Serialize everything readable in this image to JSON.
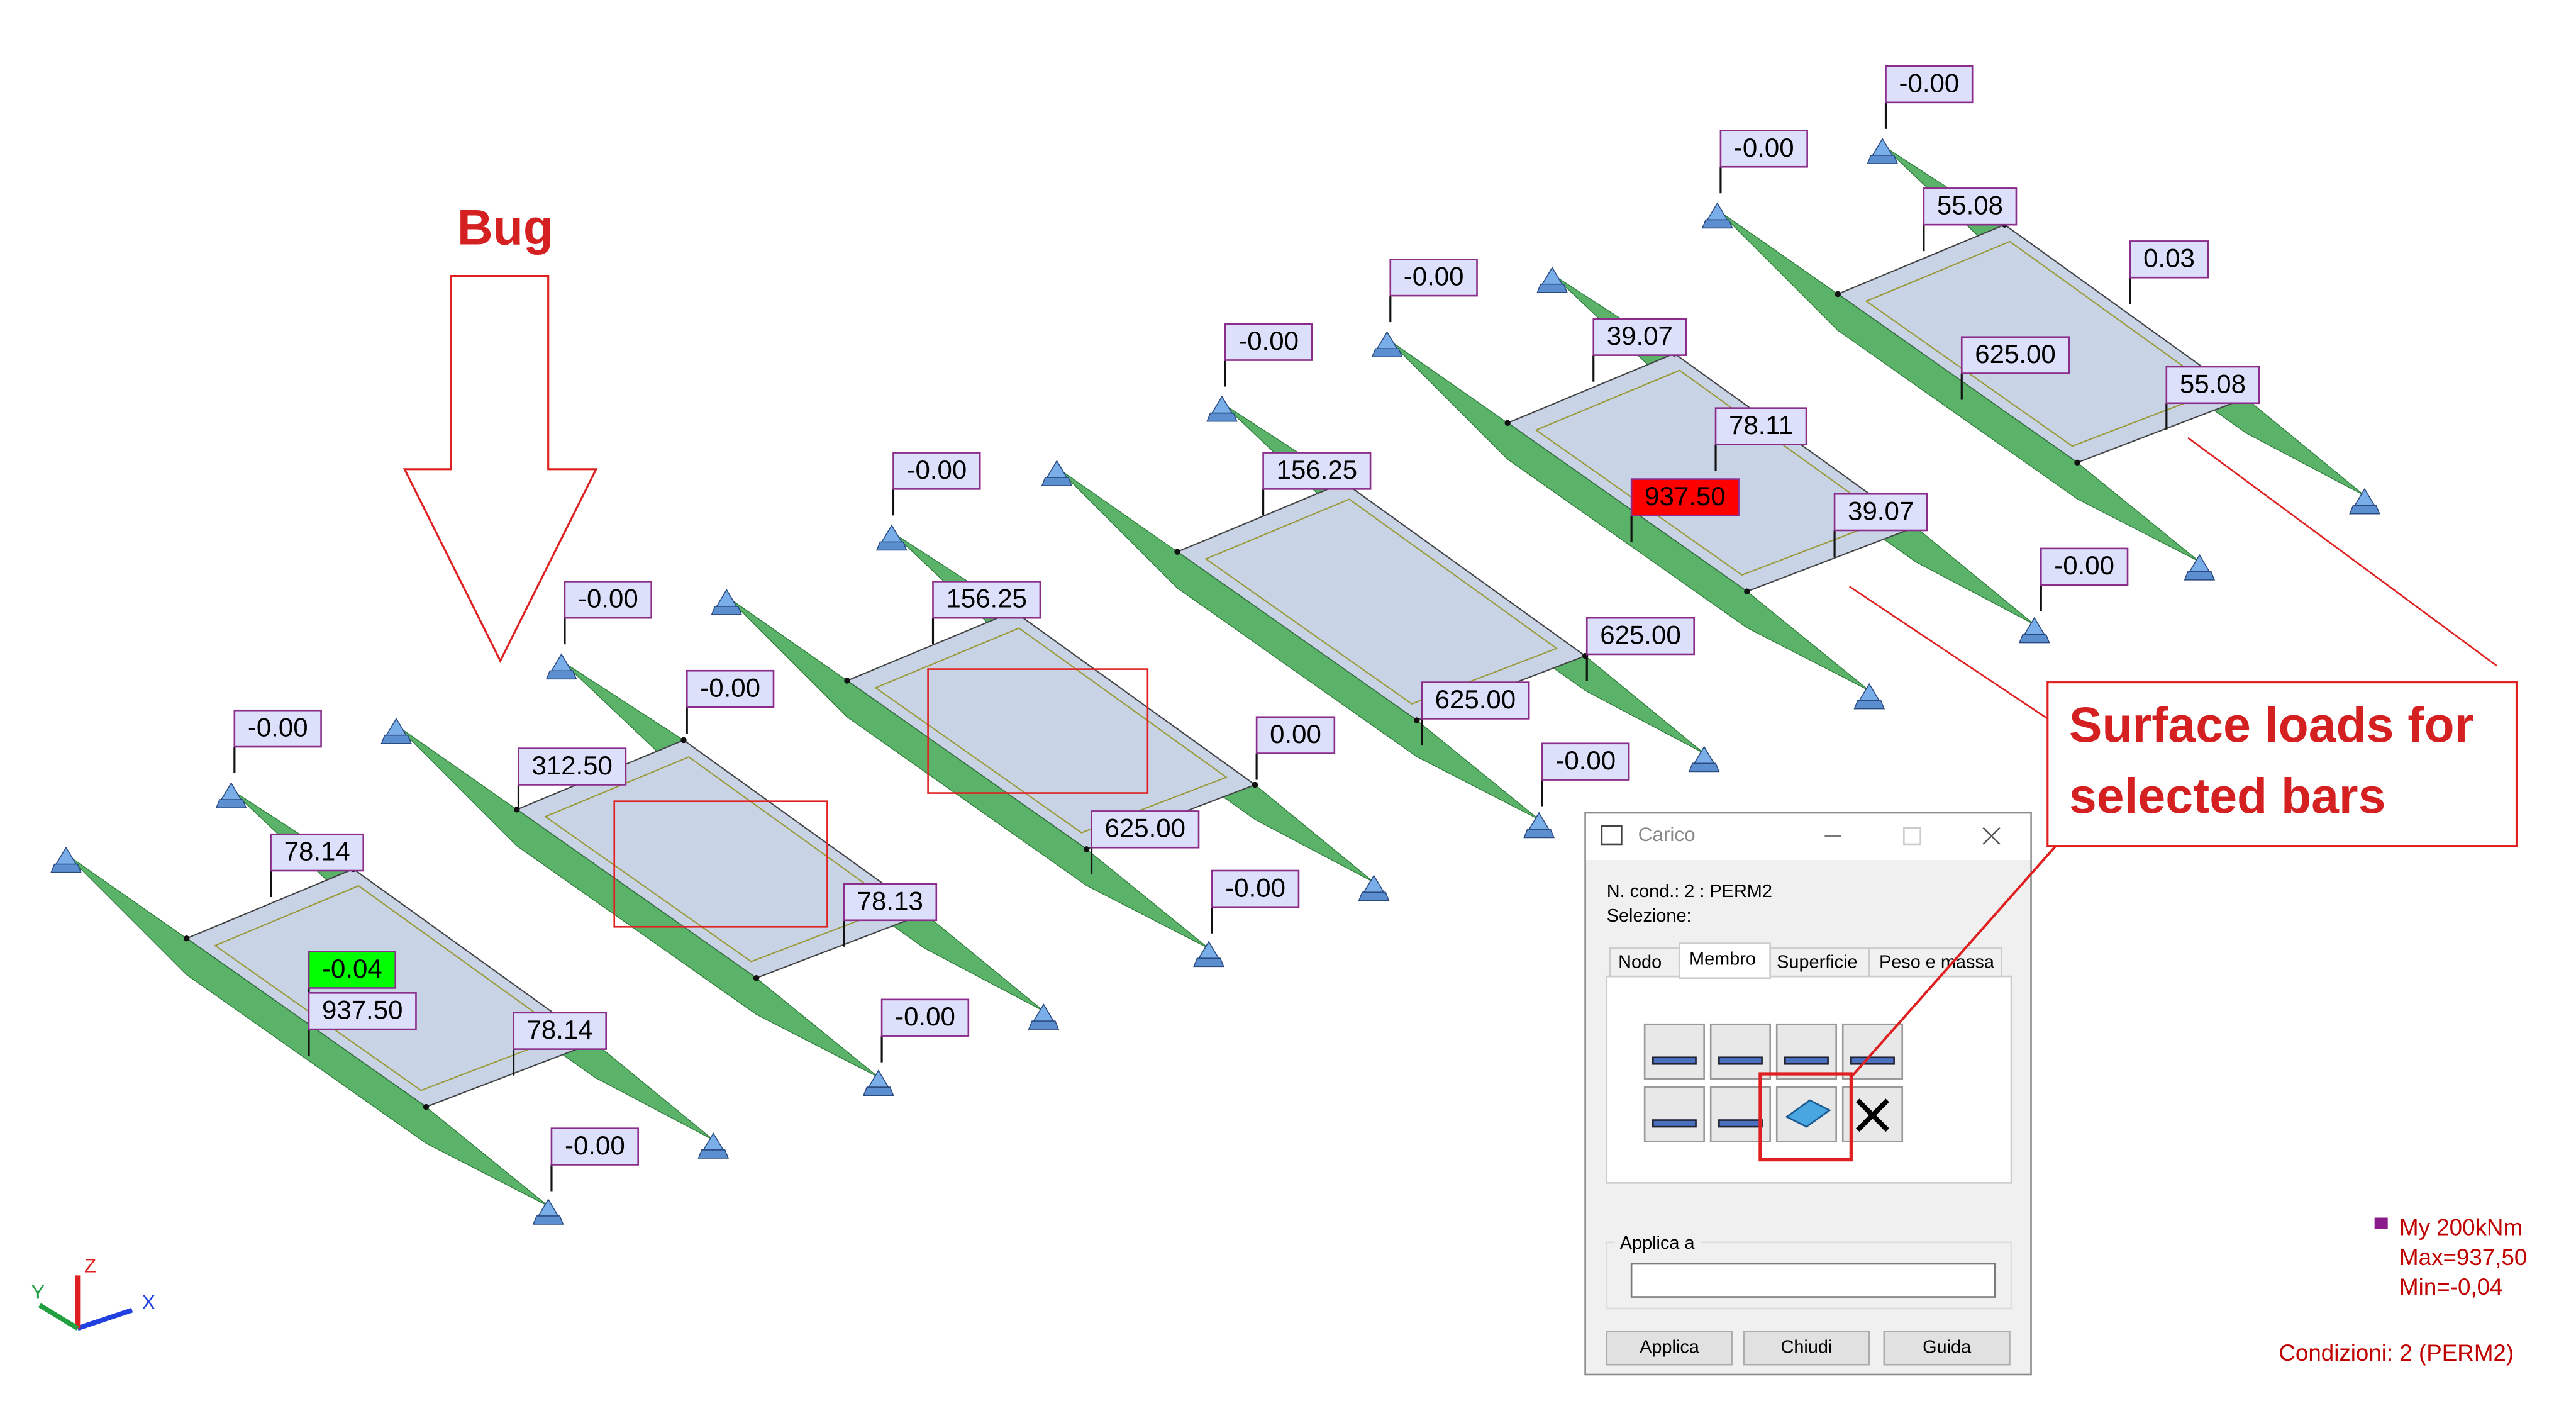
{
  "labels": [
    "-0.00",
    "78.14",
    "-0.04",
    "937.50",
    "78.14",
    "-0.00",
    "-0.00",
    "-0.00",
    "312.50",
    "78.13",
    "-0.00",
    "-0.00",
    "156.25",
    "625.00",
    "0.00",
    "-0.00",
    "-0.00",
    "156.25",
    "625.00",
    "625.00",
    "-0.00",
    "-0.00",
    "39.07",
    "78.11",
    "937.50",
    "39.07",
    "-0.00",
    "-0.00",
    "-0.00",
    "55.08",
    "0.03",
    "625.00",
    "55.08"
  ],
  "annotations": {
    "bug": "Bug",
    "callout": [
      "Surface loads for",
      "selected bars"
    ]
  },
  "dialog": {
    "title": "Carico",
    "condition": "N. cond.: 2 : PERM2",
    "selection": "Selezione:",
    "tabs": [
      "Nodo",
      "Membro",
      "Superficie",
      "Peso e massa"
    ],
    "group": "Applica a",
    "buttons": [
      "Applica",
      "Chiudi",
      "Guida"
    ]
  },
  "legend": {
    "quantity": "My  200kNm",
    "max": "Max=937,50",
    "min": "Min=-0,04",
    "condition": "Condizioni: 2 (PERM2)"
  },
  "axes": [
    "X",
    "Y",
    "Z"
  ]
}
